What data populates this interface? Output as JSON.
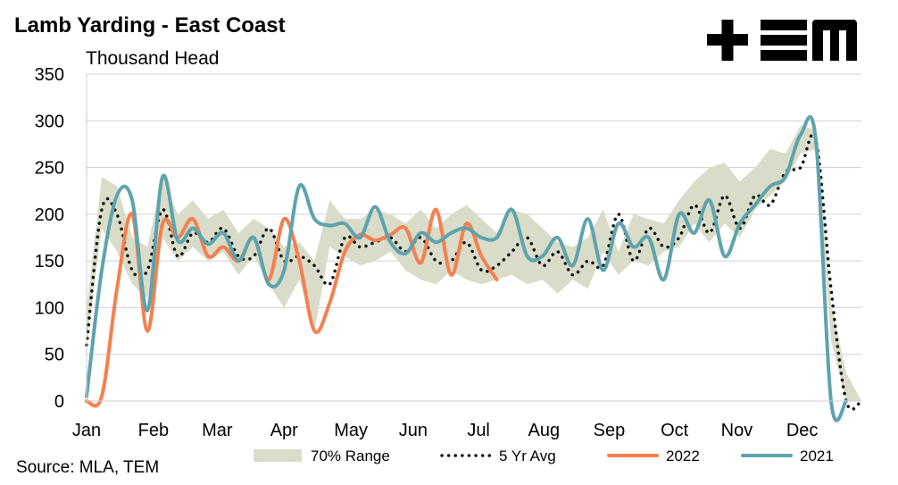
{
  "header": {
    "title": "Lamb Yarding - East Coast",
    "subtitle": "Thousand Head",
    "source": "Source: MLA, TEM",
    "logo_name": "tem-logo"
  },
  "colors": {
    "range": "#d9dcc8",
    "avg": "#111111",
    "s2022": "#f5804f",
    "s2021": "#5ea3ad",
    "grid": "#d0d0d0"
  },
  "chart_data": {
    "type": "line",
    "title": "Lamb Yarding - East Coast",
    "ylabel": "Thousand Head",
    "xlabel": "",
    "ylim": [
      0,
      350
    ],
    "yticks": [
      0,
      50,
      100,
      150,
      200,
      250,
      300,
      350
    ],
    "xlim": [
      1,
      52
    ],
    "months": [
      {
        "label": "Jan",
        "week": 1
      },
      {
        "label": "Feb",
        "week": 5.4
      },
      {
        "label": "Mar",
        "week": 9.6
      },
      {
        "label": "Apr",
        "week": 14
      },
      {
        "label": "May",
        "week": 18.4
      },
      {
        "label": "Jun",
        "week": 22.5
      },
      {
        "label": "Jul",
        "week": 26.8
      },
      {
        "label": "Aug",
        "week": 31.1
      },
      {
        "label": "Sep",
        "week": 35.4
      },
      {
        "label": "Oct",
        "week": 39.7
      },
      {
        "label": "Nov",
        "week": 43.8
      },
      {
        "label": "Dec",
        "week": 48.1
      }
    ],
    "grid": true,
    "legend_position": "bottom",
    "series": [
      {
        "name": "70% Range",
        "kind": "band",
        "x": [
          1,
          2,
          3,
          4,
          5,
          6,
          7,
          8,
          9,
          10,
          11,
          12,
          13,
          14,
          15,
          16,
          17,
          18,
          19,
          20,
          21,
          22,
          23,
          24,
          25,
          26,
          27,
          28,
          29,
          30,
          31,
          32,
          33,
          34,
          35,
          36,
          37,
          38,
          39,
          40,
          41,
          42,
          43,
          44,
          45,
          46,
          47,
          48,
          49,
          50,
          51,
          52
        ],
        "low": [
          60,
          185,
          160,
          125,
          110,
          175,
          150,
          165,
          150,
          160,
          135,
          155,
          125,
          100,
          130,
          75,
          165,
          155,
          145,
          150,
          160,
          140,
          130,
          125,
          140,
          130,
          125,
          130,
          135,
          125,
          130,
          115,
          130,
          120,
          160,
          135,
          150,
          145,
          160,
          165,
          190,
          170,
          190,
          175,
          205,
          220,
          235,
          265,
          270,
          65,
          0,
          0
        ],
        "high": [
          100,
          240,
          230,
          175,
          165,
          240,
          200,
          215,
          195,
          205,
          180,
          195,
          185,
          165,
          170,
          150,
          215,
          195,
          195,
          205,
          200,
          190,
          205,
          185,
          200,
          210,
          195,
          180,
          205,
          200,
          185,
          170,
          165,
          175,
          205,
          160,
          200,
          195,
          190,
          215,
          235,
          250,
          255,
          235,
          250,
          270,
          265,
          295,
          290,
          105,
          30,
          0
        ]
      },
      {
        "name": "5 Yr Avg",
        "kind": "dotted",
        "x": [
          1,
          2,
          3,
          4,
          5,
          6,
          7,
          8,
          9,
          10,
          11,
          12,
          13,
          14,
          15,
          16,
          17,
          18,
          19,
          20,
          21,
          22,
          23,
          24,
          25,
          26,
          27,
          28,
          29,
          30,
          31,
          32,
          33,
          34,
          35,
          36,
          37,
          38,
          39,
          40,
          41,
          42,
          43,
          44,
          45,
          46,
          47,
          48,
          49,
          50,
          51,
          52
        ],
        "y": [
          60,
          205,
          200,
          140,
          140,
          205,
          155,
          180,
          170,
          185,
          155,
          155,
          185,
          150,
          155,
          145,
          125,
          175,
          165,
          170,
          175,
          160,
          175,
          150,
          150,
          170,
          140,
          145,
          160,
          175,
          145,
          160,
          135,
          150,
          145,
          200,
          150,
          185,
          165,
          175,
          210,
          180,
          220,
          185,
          220,
          210,
          245,
          250,
          280,
          120,
          0,
          0
        ]
      },
      {
        "name": "2022",
        "kind": "line",
        "x": [
          1,
          2,
          3,
          4,
          5,
          6,
          7,
          8,
          9,
          10,
          11,
          12,
          13,
          14,
          15,
          16,
          17,
          18,
          19,
          20,
          21,
          22,
          23,
          24,
          25,
          26,
          27,
          28
        ],
        "y": [
          0,
          5,
          120,
          200,
          75,
          190,
          175,
          195,
          155,
          165,
          150,
          175,
          130,
          195,
          150,
          75,
          105,
          160,
          178,
          172,
          178,
          185,
          148,
          205,
          135,
          190,
          155,
          130
        ]
      },
      {
        "name": "2021",
        "kind": "line",
        "x": [
          1,
          2,
          3,
          4,
          5,
          6,
          7,
          8,
          9,
          10,
          11,
          12,
          13,
          14,
          15,
          16,
          17,
          18,
          19,
          20,
          21,
          22,
          23,
          24,
          25,
          26,
          27,
          28,
          29,
          30,
          31,
          32,
          33,
          34,
          35,
          36,
          37,
          38,
          39,
          40,
          41,
          42,
          43,
          44,
          45,
          46,
          47,
          48,
          49,
          50,
          51
        ],
        "y": [
          5,
          140,
          220,
          215,
          97,
          240,
          172,
          185,
          168,
          180,
          150,
          175,
          125,
          140,
          230,
          195,
          188,
          190,
          175,
          208,
          170,
          158,
          180,
          170,
          180,
          185,
          175,
          175,
          205,
          155,
          155,
          175,
          145,
          195,
          140,
          190,
          165,
          175,
          130,
          200,
          180,
          215,
          155,
          190,
          210,
          230,
          240,
          285,
          280,
          0,
          0
        ]
      }
    ]
  }
}
